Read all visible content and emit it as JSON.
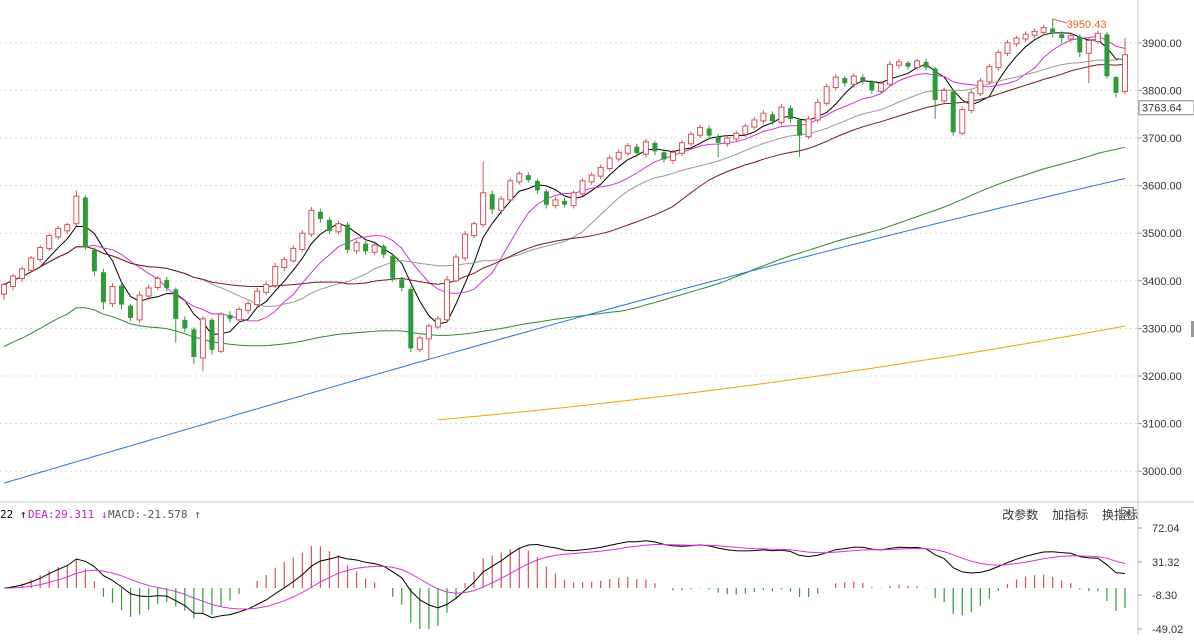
{
  "colors": {
    "up": "#d4525a",
    "down": "#2f9a3a",
    "ma5": "#000000",
    "ma10": "#d633d6",
    "ma20": "#999999",
    "ma30": "#7a1a1a",
    "ma60": "#2d8a2d",
    "ma120": "#1f78d4",
    "ma250": "#f0a500",
    "dif": "#000000",
    "dea": "#d633d6",
    "macd_up": "#d4525a",
    "macd_down": "#2f9a3a",
    "grid": "#d8d8d8",
    "annotation": "#e06a1e"
  },
  "price_panel": {
    "y_ticks": [
      "3900.00",
      "3800.00",
      "3700.00",
      "3600.00",
      "3500.00",
      "3400.00",
      "3300.00",
      "3200.00",
      "3100.00",
      "3000.00"
    ],
    "current_price_label": "3763.64",
    "high_annotation": "3950.43"
  },
  "indicator_panel": {
    "dif_label": "22",
    "dif_arrow": "↑",
    "dea_label": "DEA:29.311",
    "dea_arrow": "↓",
    "macd_label": "MACD:-21.578",
    "macd_arrow": "↑",
    "y_ticks": [
      "72.04",
      "31.32",
      "-8.30",
      "-49.02"
    ],
    "tools": [
      "改参数",
      "加指标",
      "换指标"
    ],
    "close_icon": "close-icon"
  },
  "chart_data": [
    {
      "type": "candlestick",
      "title": "",
      "ylim": [
        2950,
        3990
      ],
      "y_ticks": [
        3900,
        3800,
        3700,
        3600,
        3500,
        3400,
        3300,
        3200,
        3100,
        3000
      ],
      "grid": true,
      "candles": [
        [
          3372,
          3392,
          3360,
          3395
        ],
        [
          3388,
          3410,
          3380,
          3415
        ],
        [
          3405,
          3425,
          3398,
          3430
        ],
        [
          3422,
          3448,
          3418,
          3452
        ],
        [
          3445,
          3470,
          3440,
          3475
        ],
        [
          3468,
          3495,
          3462,
          3500
        ],
        [
          3492,
          3510,
          3486,
          3515
        ],
        [
          3505,
          3518,
          3498,
          3522
        ],
        [
          3520,
          3578,
          3515,
          3590
        ],
        [
          3575,
          3470,
          3465,
          3580
        ],
        [
          3465,
          3420,
          3410,
          3470
        ],
        [
          3418,
          3355,
          3340,
          3425
        ],
        [
          3352,
          3388,
          3345,
          3395
        ],
        [
          3390,
          3350,
          3340,
          3398
        ],
        [
          3348,
          3322,
          3315,
          3352
        ],
        [
          3318,
          3370,
          3312,
          3378
        ],
        [
          3368,
          3385,
          3360,
          3392
        ],
        [
          3386,
          3405,
          3380,
          3410
        ],
        [
          3402,
          3385,
          3378,
          3408
        ],
        [
          3382,
          3320,
          3270,
          3386
        ],
        [
          3318,
          3300,
          3292,
          3325
        ],
        [
          3298,
          3240,
          3225,
          3302
        ],
        [
          3238,
          3320,
          3210,
          3326
        ],
        [
          3318,
          3255,
          3245,
          3322
        ],
        [
          3252,
          3330,
          3248,
          3335
        ],
        [
          3328,
          3320,
          3312,
          3336
        ],
        [
          3318,
          3340,
          3312,
          3345
        ],
        [
          3338,
          3352,
          3330,
          3358
        ],
        [
          3350,
          3378,
          3345,
          3385
        ],
        [
          3376,
          3392,
          3370,
          3398
        ],
        [
          3390,
          3430,
          3385,
          3438
        ],
        [
          3428,
          3445,
          3420,
          3450
        ],
        [
          3442,
          3468,
          3438,
          3474
        ],
        [
          3466,
          3500,
          3460,
          3506
        ],
        [
          3498,
          3548,
          3492,
          3555
        ],
        [
          3545,
          3530,
          3522,
          3552
        ],
        [
          3528,
          3505,
          3498,
          3533
        ],
        [
          3503,
          3520,
          3498,
          3526
        ],
        [
          3518,
          3465,
          3458,
          3523
        ],
        [
          3463,
          3480,
          3456,
          3486
        ],
        [
          3478,
          3462,
          3455,
          3484
        ],
        [
          3460,
          3475,
          3454,
          3480
        ],
        [
          3473,
          3455,
          3448,
          3478
        ],
        [
          3453,
          3405,
          3398,
          3458
        ],
        [
          3403,
          3385,
          3378,
          3408
        ],
        [
          3383,
          3258,
          3250,
          3388
        ],
        [
          3256,
          3280,
          3250,
          3285
        ],
        [
          3278,
          3305,
          3235,
          3310
        ],
        [
          3303,
          3320,
          3298,
          3326
        ],
        [
          3318,
          3402,
          3312,
          3410
        ],
        [
          3400,
          3450,
          3396,
          3456
        ],
        [
          3448,
          3498,
          3442,
          3505
        ],
        [
          3495,
          3520,
          3490,
          3525
        ],
        [
          3518,
          3585,
          3512,
          3650
        ],
        [
          3582,
          3550,
          3540,
          3590
        ],
        [
          3548,
          3572,
          3540,
          3578
        ],
        [
          3570,
          3610,
          3565,
          3616
        ],
        [
          3608,
          3625,
          3602,
          3630
        ],
        [
          3622,
          3612,
          3606,
          3628
        ],
        [
          3610,
          3590,
          3582,
          3614
        ],
        [
          3588,
          3560,
          3552,
          3592
        ],
        [
          3558,
          3570,
          3552,
          3576
        ],
        [
          3568,
          3560,
          3554,
          3574
        ],
        [
          3558,
          3585,
          3552,
          3590
        ],
        [
          3583,
          3610,
          3578,
          3616
        ],
        [
          3608,
          3622,
          3602,
          3628
        ],
        [
          3620,
          3638,
          3614,
          3644
        ],
        [
          3636,
          3658,
          3630,
          3664
        ],
        [
          3656,
          3670,
          3650,
          3676
        ],
        [
          3668,
          3684,
          3662,
          3690
        ],
        [
          3682,
          3668,
          3660,
          3688
        ],
        [
          3666,
          3692,
          3660,
          3698
        ],
        [
          3690,
          3672,
          3664,
          3694
        ],
        [
          3670,
          3655,
          3648,
          3674
        ],
        [
          3653,
          3670,
          3646,
          3676
        ],
        [
          3668,
          3690,
          3662,
          3696
        ],
        [
          3688,
          3708,
          3682,
          3714
        ],
        [
          3706,
          3722,
          3700,
          3728
        ],
        [
          3720,
          3705,
          3698,
          3726
        ],
        [
          3703,
          3690,
          3660,
          3708
        ],
        [
          3688,
          3700,
          3682,
          3706
        ],
        [
          3698,
          3710,
          3692,
          3716
        ],
        [
          3708,
          3725,
          3702,
          3730
        ],
        [
          3723,
          3738,
          3718,
          3744
        ],
        [
          3736,
          3752,
          3730,
          3758
        ],
        [
          3750,
          3735,
          3728,
          3756
        ],
        [
          3733,
          3765,
          3728,
          3772
        ],
        [
          3763,
          3740,
          3732,
          3768
        ],
        [
          3738,
          3705,
          3660,
          3742
        ],
        [
          3703,
          3740,
          3698,
          3746
        ],
        [
          3738,
          3775,
          3732,
          3782
        ],
        [
          3773,
          3808,
          3768,
          3814
        ],
        [
          3806,
          3828,
          3800,
          3834
        ],
        [
          3826,
          3815,
          3808,
          3830
        ],
        [
          3813,
          3830,
          3806,
          3836
        ],
        [
          3828,
          3820,
          3812,
          3834
        ],
        [
          3818,
          3800,
          3792,
          3822
        ],
        [
          3798,
          3815,
          3792,
          3820
        ],
        [
          3813,
          3855,
          3808,
          3862
        ],
        [
          3853,
          3860,
          3846,
          3866
        ],
        [
          3858,
          3850,
          3844,
          3862
        ],
        [
          3848,
          3862,
          3842,
          3866
        ],
        [
          3860,
          3848,
          3842,
          3866
        ],
        [
          3846,
          3780,
          3740,
          3850
        ],
        [
          3778,
          3800,
          3772,
          3806
        ],
        [
          3798,
          3712,
          3705,
          3802
        ],
        [
          3710,
          3760,
          3706,
          3766
        ],
        [
          3758,
          3795,
          3752,
          3800
        ],
        [
          3793,
          3820,
          3788,
          3826
        ],
        [
          3818,
          3850,
          3812,
          3856
        ],
        [
          3848,
          3880,
          3842,
          3886
        ],
        [
          3878,
          3900,
          3872,
          3906
        ],
        [
          3898,
          3910,
          3892,
          3915
        ],
        [
          3908,
          3918,
          3902,
          3924
        ],
        [
          3916,
          3924,
          3910,
          3930
        ],
        [
          3922,
          3932,
          3916,
          3938
        ],
        [
          3930,
          3920,
          3912,
          3950
        ],
        [
          3918,
          3910,
          3900,
          3924
        ],
        [
          3908,
          3915,
          3902,
          3920
        ],
        [
          3913,
          3880,
          3870,
          3918
        ],
        [
          3878,
          3905,
          3815,
          3910
        ],
        [
          3903,
          3920,
          3898,
          3926
        ],
        [
          3918,
          3830,
          3825,
          3922
        ],
        [
          3828,
          3795,
          3785,
          3830
        ],
        [
          3798,
          3875,
          3792,
          3910
        ]
      ],
      "ma_lengths": [
        5,
        10,
        20,
        30,
        60,
        120,
        250
      ],
      "ma120_range": [
        2975,
        3615
      ],
      "ma250_range": [
        3108,
        3305
      ],
      "last_price": 3763.64,
      "high_label": 3950.43
    },
    {
      "type": "bar",
      "title": "MACD",
      "ylim": [
        -49.02,
        72.04
      ],
      "y_ticks": [
        72.04,
        31.32,
        -8.3,
        -49.02
      ],
      "grid": false,
      "series": [
        {
          "name": "DEA",
          "values": [
            29.311
          ]
        },
        {
          "name": "MACD",
          "values": [
            -21.578
          ]
        }
      ]
    }
  ]
}
